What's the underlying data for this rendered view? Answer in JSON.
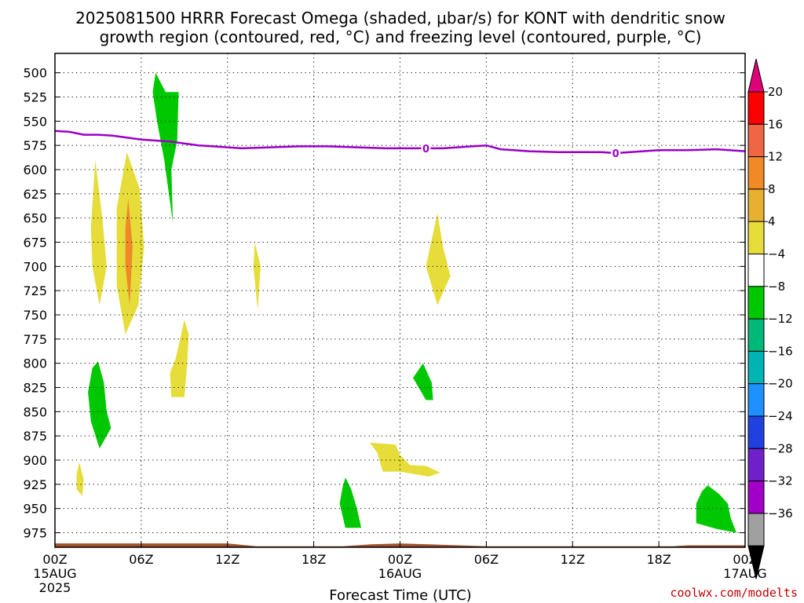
{
  "title_lines": [
    "2025081500 HRRR Forecast Omega (shaded, μbar/s) for KONT with dendritic snow",
    "growth region (contoured, red, °C) and freezing level (contoured, purple, °C)"
  ],
  "credit": "coolwx.com/modelts",
  "chart_data": {
    "type": "time-height-contour",
    "title": "2025081500 HRRR Forecast Omega (shaded, μbar/s) for KONT with dendritic snow growth region (contoured, red, °C) and freezing level (contoured, purple, °C)",
    "xlabel": "Forecast Time (UTC)",
    "ylabel": "",
    "x_range_hours": [
      0,
      48
    ],
    "y_range_hPa": [
      480,
      990
    ],
    "y_ticks": [
      500,
      525,
      550,
      575,
      600,
      625,
      650,
      675,
      700,
      725,
      750,
      775,
      800,
      825,
      850,
      875,
      900,
      925,
      950,
      975
    ],
    "x_ticks": [
      {
        "hour": 0,
        "label": "00Z",
        "sub1": "15AUG",
        "sub2": "2025"
      },
      {
        "hour": 6,
        "label": "06Z",
        "sub1": "",
        "sub2": ""
      },
      {
        "hour": 12,
        "label": "12Z",
        "sub1": "",
        "sub2": ""
      },
      {
        "hour": 18,
        "label": "18Z",
        "sub1": "",
        "sub2": ""
      },
      {
        "hour": 24,
        "label": "00Z",
        "sub1": "16AUG",
        "sub2": ""
      },
      {
        "hour": 30,
        "label": "06Z",
        "sub1": "",
        "sub2": ""
      },
      {
        "hour": 36,
        "label": "12Z",
        "sub1": "",
        "sub2": ""
      },
      {
        "hour": 42,
        "label": "18Z",
        "sub1": "",
        "sub2": ""
      },
      {
        "hour": 48,
        "label": "00Z",
        "sub1": "17AUG",
        "sub2": ""
      }
    ],
    "grid": true,
    "colorbar": {
      "levels": [
        20,
        16,
        12,
        8,
        4,
        -4,
        -8,
        -12,
        -16,
        -20,
        -24,
        -28,
        -32,
        -36
      ],
      "colors": [
        "#ff0000",
        "#ee6644",
        "#f08a28",
        "#e8b030",
        "#e6dd3a",
        "#ffffff",
        "#00c800",
        "#00b878",
        "#00b4b4",
        "#1e90ff",
        "#2040e0",
        "#7020c8",
        "#a000c8",
        "#a0a0a0"
      ],
      "top_arrow_color": "#e0007a",
      "bottom_arrow_color": "#000000"
    },
    "freezing_level": {
      "label": "0",
      "color": "#9a00c8",
      "label_hours": [
        25.8,
        39.0
      ],
      "points": [
        [
          0,
          560
        ],
        [
          1,
          561
        ],
        [
          2,
          564
        ],
        [
          3,
          564
        ],
        [
          4,
          565
        ],
        [
          5,
          567
        ],
        [
          6,
          569
        ],
        [
          8,
          571
        ],
        [
          10,
          575
        ],
        [
          11,
          576
        ],
        [
          13,
          578
        ],
        [
          15,
          577
        ],
        [
          17,
          576
        ],
        [
          19,
          576
        ],
        [
          21,
          577
        ],
        [
          23,
          578
        ],
        [
          25,
          578
        ],
        [
          27,
          578
        ],
        [
          29,
          576
        ],
        [
          30,
          575
        ],
        [
          31,
          579
        ],
        [
          33,
          581
        ],
        [
          35,
          582
        ],
        [
          37,
          582
        ],
        [
          38,
          582
        ],
        [
          39,
          583
        ],
        [
          40,
          582
        ],
        [
          42,
          580
        ],
        [
          44,
          580
        ],
        [
          46,
          579
        ],
        [
          48,
          581
        ]
      ]
    },
    "surface_terrain": {
      "color": "#a0522d",
      "top_points": [
        [
          0,
          986
        ],
        [
          6,
          986
        ],
        [
          12,
          986
        ],
        [
          14,
          989
        ],
        [
          20,
          989
        ],
        [
          21,
          988
        ],
        [
          22,
          987
        ],
        [
          24,
          986
        ],
        [
          26,
          987
        ],
        [
          28,
          988
        ],
        [
          30,
          989
        ],
        [
          36,
          989
        ],
        [
          43,
          989
        ],
        [
          44,
          988
        ],
        [
          48,
          988
        ]
      ],
      "bottom_hPa": 993
    },
    "shaded_regions": [
      {
        "color": "#e6dd3a",
        "points": [
          [
            2.8,
            590
          ],
          [
            3.3,
            650
          ],
          [
            3.6,
            700
          ],
          [
            3.1,
            740
          ],
          [
            2.6,
            700
          ],
          [
            2.5,
            660
          ]
        ]
      },
      {
        "color": "#e6dd3a",
        "points": [
          [
            5.0,
            582
          ],
          [
            5.9,
            620
          ],
          [
            6.2,
            680
          ],
          [
            5.8,
            740
          ],
          [
            4.9,
            770
          ],
          [
            4.3,
            720
          ],
          [
            4.3,
            640
          ]
        ]
      },
      {
        "color": "#f08a28",
        "points": [
          [
            5.1,
            630
          ],
          [
            5.4,
            680
          ],
          [
            5.2,
            740
          ],
          [
            4.9,
            700
          ],
          [
            4.9,
            660
          ]
        ]
      },
      {
        "color": "#00c800",
        "points": [
          [
            7.0,
            500
          ],
          [
            7.7,
            520
          ],
          [
            8.6,
            520
          ],
          [
            8.5,
            570
          ],
          [
            8.1,
            600
          ],
          [
            8.2,
            655
          ],
          [
            7.6,
            590
          ],
          [
            7.1,
            550
          ],
          [
            6.8,
            520
          ]
        ]
      },
      {
        "color": "#e6dd3a",
        "points": [
          [
            13.9,
            675
          ],
          [
            14.3,
            700
          ],
          [
            14.1,
            745
          ],
          [
            13.8,
            700
          ]
        ]
      },
      {
        "color": "#e6dd3a",
        "points": [
          [
            9.0,
            755
          ],
          [
            9.3,
            770
          ],
          [
            9.2,
            800
          ],
          [
            9.0,
            835
          ],
          [
            8.1,
            835
          ],
          [
            8.0,
            810
          ],
          [
            8.4,
            795
          ]
        ]
      },
      {
        "color": "#00c800",
        "points": [
          [
            3.0,
            798
          ],
          [
            3.4,
            820
          ],
          [
            3.6,
            850
          ],
          [
            3.9,
            867
          ],
          [
            3.1,
            888
          ],
          [
            2.5,
            860
          ],
          [
            2.3,
            830
          ],
          [
            2.6,
            805
          ]
        ]
      },
      {
        "color": "#e6dd3a",
        "points": [
          [
            1.7,
            902
          ],
          [
            2.0,
            920
          ],
          [
            1.9,
            937
          ],
          [
            1.5,
            930
          ],
          [
            1.5,
            915
          ]
        ]
      },
      {
        "color": "#e6dd3a",
        "points": [
          [
            26.6,
            645
          ],
          [
            27.0,
            680
          ],
          [
            27.5,
            710
          ],
          [
            26.6,
            740
          ],
          [
            25.8,
            700
          ]
        ]
      },
      {
        "color": "#00c800",
        "points": [
          [
            25.6,
            800
          ],
          [
            26.2,
            820
          ],
          [
            26.3,
            838
          ],
          [
            25.8,
            838
          ],
          [
            24.9,
            815
          ]
        ]
      },
      {
        "color": "#e6dd3a",
        "points": [
          [
            21.9,
            882
          ],
          [
            23.7,
            884
          ],
          [
            24.0,
            895
          ],
          [
            24.7,
            905
          ],
          [
            25.8,
            906
          ],
          [
            26.8,
            913
          ],
          [
            26.0,
            917
          ],
          [
            24.0,
            912
          ],
          [
            22.8,
            912
          ],
          [
            22.4,
            892
          ]
        ]
      },
      {
        "color": "#00c800",
        "points": [
          [
            20.2,
            918
          ],
          [
            20.6,
            930
          ],
          [
            21.0,
            950
          ],
          [
            21.3,
            970
          ],
          [
            20.2,
            970
          ],
          [
            19.8,
            945
          ],
          [
            20.0,
            928
          ]
        ]
      },
      {
        "color": "#00c800",
        "points": [
          [
            45.4,
            926
          ],
          [
            46.2,
            935
          ],
          [
            46.8,
            945
          ],
          [
            47.0,
            960
          ],
          [
            47.4,
            975
          ],
          [
            46.0,
            971
          ],
          [
            44.6,
            965
          ],
          [
            44.6,
            945
          ],
          [
            45.0,
            932
          ]
        ]
      }
    ]
  }
}
